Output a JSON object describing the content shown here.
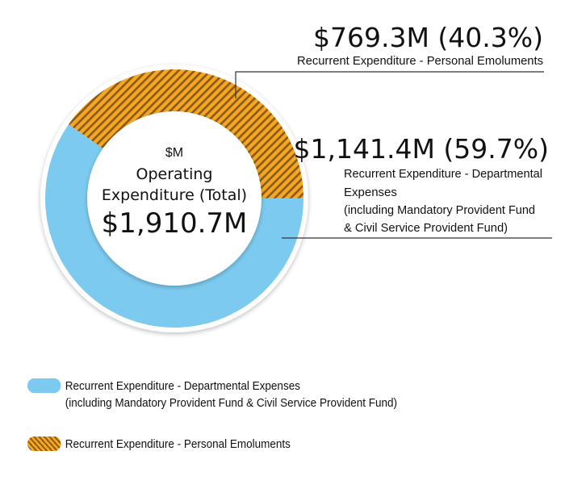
{
  "chart_data": {
    "type": "pie",
    "variant": "donut",
    "unit": "$M",
    "center": {
      "unit_label": "$M",
      "title_line1": "Operating",
      "title_line2": "Expenditure (Total)",
      "total_label": "$1,910.7M",
      "total_value": 1910.7
    },
    "slices": [
      {
        "name": "Recurrent Expenditure - Personal Emoluments",
        "value": 769.3,
        "percent": 40.3,
        "value_label": "$769.3M (40.3%)",
        "callout_lines": [
          "Recurrent Expenditure - Personal Emoluments"
        ],
        "color": "#F5A623",
        "hatch_color": "#8B5A12",
        "pattern": "diagonal-hatch"
      },
      {
        "name": "Recurrent Expenditure - Departmental Expenses (including Mandatory Provident Fund & Civil Service Provident Fund)",
        "value": 1141.4,
        "percent": 59.7,
        "value_label": "$1,141.4M (59.7%)",
        "callout_lines": [
          "Recurrent Expenditure - Departmental",
          "Expenses",
          "(including Mandatory Provident Fund",
          "& Civil Service Provident Fund)"
        ],
        "color": "#7DCAF0",
        "pattern": "solid"
      }
    ],
    "legend": [
      {
        "lines": [
          "Recurrent Expenditure - Departmental Expenses",
          "(including Mandatory Provident Fund & Civil Service Provident Fund)"
        ],
        "color": "#7DCAF0",
        "pattern": "solid"
      },
      {
        "lines": [
          "Recurrent Expenditure - Personal Emoluments"
        ],
        "color": "#F5A623",
        "pattern": "diagonal-hatch"
      }
    ],
    "legend_position": "bottom-left"
  }
}
